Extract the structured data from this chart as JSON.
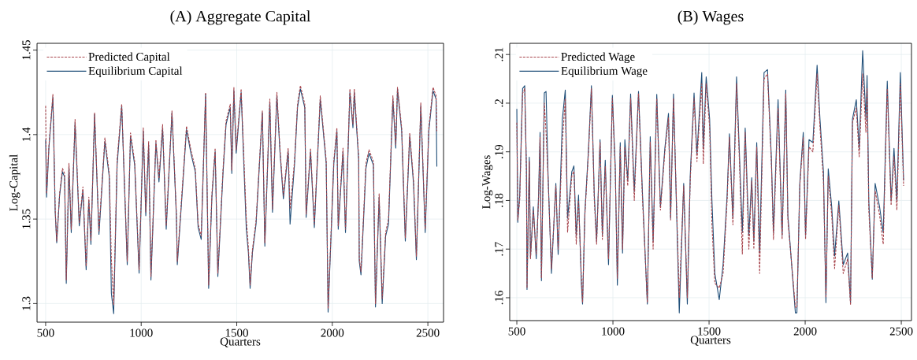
{
  "chart_data": [
    {
      "type": "line",
      "title": "(A) Aggregate Capital",
      "xlabel": "Quarters",
      "ylabel": "Log-Capital",
      "x": [
        500,
        505,
        517,
        538,
        550,
        558,
        573,
        588,
        599,
        608,
        622,
        634,
        654,
        676,
        695,
        712,
        726,
        737,
        756,
        779,
        810,
        833,
        844,
        856,
        874,
        898,
        927,
        944,
        966,
        989,
        1011,
        1024,
        1039,
        1051,
        1077,
        1093,
        1112,
        1131,
        1161,
        1184,
        1189,
        1237,
        1260,
        1283,
        1298,
        1314,
        1337,
        1353,
        1370,
        1387,
        1401,
        1428,
        1444,
        1466,
        1474,
        1485,
        1497,
        1523,
        1550,
        1561,
        1570,
        1582,
        1601,
        1634,
        1647,
        1673,
        1687,
        1710,
        1726,
        1744,
        1769,
        1779,
        1802,
        1818,
        1833,
        1856,
        1863,
        1886,
        1906,
        1937,
        1968,
        1978,
        2008,
        2024,
        2031,
        2056,
        2069,
        2092,
        2108,
        2115,
        2138,
        2141,
        2150,
        2176,
        2192,
        2215,
        2226,
        2245,
        2261,
        2279,
        2294,
        2317,
        2332,
        2341,
        2363,
        2382,
        2405,
        2425,
        2440,
        2463,
        2486,
        2505,
        2527,
        2543,
        2547
      ],
      "series": [
        {
          "name": "Predicted Capital",
          "color": "#a8464e",
          "line_style": "dashed",
          "values": [
            1.417,
            1.365,
            1.393,
            1.424,
            1.356,
            1.337,
            1.365,
            1.38,
            1.377,
            1.314,
            1.383,
            1.344,
            1.409,
            1.348,
            1.369,
            1.322,
            1.363,
            1.337,
            1.413,
            1.343,
            1.398,
            1.377,
            1.326,
            1.299,
            1.385,
            1.418,
            1.325,
            1.401,
            1.384,
            1.32,
            1.404,
            1.354,
            1.396,
            1.316,
            1.397,
            1.374,
            1.406,
            1.346,
            1.414,
            1.354,
            1.325,
            1.405,
            1.391,
            1.38,
            1.347,
            1.34,
            1.425,
            1.311,
            1.365,
            1.392,
            1.318,
            1.379,
            1.408,
            1.418,
            1.379,
            1.428,
            1.391,
            1.427,
            1.35,
            1.333,
            1.311,
            1.332,
            1.349,
            1.414,
            1.336,
            1.421,
            1.356,
            1.425,
            1.392,
            1.364,
            1.392,
            1.356,
            1.384,
            1.418,
            1.429,
            1.418,
            1.353,
            1.392,
            1.347,
            1.423,
            1.385,
            1.297,
            1.385,
            1.404,
            1.346,
            1.392,
            1.344,
            1.427,
            1.406,
            1.427,
            1.387,
            1.327,
            1.319,
            1.383,
            1.391,
            1.384,
            1.3,
            1.365,
            1.303,
            1.342,
            1.35,
            1.423,
            1.394,
            1.428,
            1.404,
            1.339,
            1.401,
            1.373,
            1.328,
            1.419,
            1.344,
            1.404,
            1.428,
            1.423,
            1.402
          ]
        },
        {
          "name": "Equilibrium Capital",
          "color": "#1f4e78",
          "line_style": "solid",
          "values": [
            1.397,
            1.363,
            1.392,
            1.422,
            1.354,
            1.336,
            1.364,
            1.378,
            1.375,
            1.312,
            1.381,
            1.342,
            1.407,
            1.346,
            1.367,
            1.32,
            1.361,
            1.335,
            1.412,
            1.341,
            1.396,
            1.375,
            1.306,
            1.294,
            1.382,
            1.417,
            1.323,
            1.399,
            1.382,
            1.318,
            1.402,
            1.352,
            1.394,
            1.314,
            1.395,
            1.372,
            1.404,
            1.344,
            1.413,
            1.352,
            1.323,
            1.403,
            1.389,
            1.378,
            1.345,
            1.338,
            1.424,
            1.309,
            1.363,
            1.39,
            1.316,
            1.377,
            1.406,
            1.416,
            1.377,
            1.426,
            1.389,
            1.425,
            1.344,
            1.33,
            1.309,
            1.33,
            1.347,
            1.413,
            1.334,
            1.419,
            1.354,
            1.423,
            1.39,
            1.362,
            1.39,
            1.347,
            1.382,
            1.416,
            1.427,
            1.416,
            1.351,
            1.39,
            1.345,
            1.421,
            1.383,
            1.295,
            1.383,
            1.402,
            1.344,
            1.39,
            1.342,
            1.425,
            1.404,
            1.425,
            1.385,
            1.325,
            1.317,
            1.38,
            1.389,
            1.382,
            1.298,
            1.363,
            1.3,
            1.34,
            1.347,
            1.421,
            1.392,
            1.427,
            1.402,
            1.337,
            1.399,
            1.371,
            1.326,
            1.417,
            1.342,
            1.402,
            1.426,
            1.421,
            1.381
          ]
        }
      ],
      "xlim": [
        455,
        2582
      ],
      "ylim": [
        1.289,
        1.454
      ],
      "xticks": [
        500,
        1000,
        1500,
        2000,
        2500
      ],
      "yticks": [
        1.3,
        1.35,
        1.4,
        1.45
      ],
      "grid": true,
      "legend": "top left"
    },
    {
      "type": "line",
      "title": "(B) Wages",
      "xlabel": "Quarters",
      "ylabel": "Log-Wages",
      "x": [
        500,
        505,
        515,
        530,
        541,
        550,
        553,
        565,
        571,
        586,
        601,
        613,
        621,
        628,
        643,
        652,
        662,
        680,
        703,
        715,
        737,
        752,
        764,
        786,
        797,
        809,
        821,
        836,
        842,
        854,
        873,
        888,
        903,
        915,
        933,
        945,
        960,
        977,
        997,
        1012,
        1023,
        1038,
        1050,
        1062,
        1077,
        1092,
        1111,
        1133,
        1154,
        1179,
        1194,
        1209,
        1228,
        1247,
        1270,
        1289,
        1300,
        1315,
        1345,
        1368,
        1387,
        1402,
        1422,
        1437,
        1462,
        1470,
        1485,
        1503,
        1515,
        1530,
        1553,
        1573,
        1594,
        1606,
        1624,
        1643,
        1658,
        1673,
        1688,
        1707,
        1722,
        1733,
        1748,
        1763,
        1786,
        1804,
        1824,
        1835,
        1859,
        1880,
        1899,
        1910,
        1949,
        1957,
        1972,
        1990,
        2002,
        2020,
        2040,
        2062,
        2077,
        2095,
        2108,
        2120,
        2138,
        2153,
        2175,
        2198,
        2221,
        2236,
        2246,
        2266,
        2281,
        2299,
        2316,
        2322,
        2331,
        2349,
        2364,
        2387,
        2406,
        2427,
        2447,
        2462,
        2477,
        2495,
        2512
      ],
      "series": [
        {
          "name": "Predicted Wage",
          "color": "#a8464e",
          "line_style": "dashed",
          "values": [
            0.196,
            0.176,
            0.18,
            0.202,
            0.203,
            0.186,
            0.162,
            0.188,
            0.168,
            0.178,
            0.169,
            0.18,
            0.193,
            0.164,
            0.2,
            0.194,
            0.185,
            0.166,
            0.183,
            0.17,
            0.192,
            0.201,
            0.1735,
            0.185,
            0.186,
            0.171,
            0.18,
            0.164,
            0.159,
            0.177,
            0.19,
            0.203,
            0.18,
            0.171,
            0.192,
            0.172,
            0.187,
            0.168,
            0.201,
            0.186,
            0.164,
            0.191,
            0.17,
            0.191,
            0.183,
            0.201,
            0.18,
            0.202,
            0.18,
            0.159,
            0.192,
            0.17,
            0.201,
            0.178,
            0.19,
            0.197,
            0.176,
            0.201,
            0.16,
            0.183,
            0.16,
            0.184,
            0.201,
            0.188,
            0.204,
            0.1875,
            0.204,
            0.195,
            0.175,
            0.163,
            0.162,
            0.165,
            0.18,
            0.193,
            0.175,
            0.204,
            0.188,
            0.169,
            0.194,
            0.17,
            0.184,
            0.17,
            0.191,
            0.165,
            0.205,
            0.206,
            0.188,
            0.172,
            0.199,
            0.172,
            0.202,
            0.176,
            0.158,
            0.158,
            0.183,
            0.193,
            0.172,
            0.191,
            0.19,
            0.206,
            0.195,
            0.184,
            0.16,
            0.185,
            0.177,
            0.166,
            0.179,
            0.165,
            0.168,
            0.1585,
            0.196,
            0.199,
            0.189,
            0.206,
            0.194,
            0.203,
            0.178,
            0.164,
            0.182,
            0.177,
            0.171,
            0.203,
            0.179,
            0.189,
            0.178,
            0.204,
            0.183
          ]
        },
        {
          "name": "Equilibrium Wage",
          "color": "#1f4e78",
          "line_style": "solid",
          "values": [
            0.1988,
            0.1755,
            0.1811,
            0.203,
            0.2036,
            0.1865,
            0.1617,
            0.1889,
            0.1683,
            0.1787,
            0.168,
            0.1811,
            0.194,
            0.1635,
            0.2021,
            0.2024,
            0.1859,
            0.165,
            0.1835,
            0.1689,
            0.1967,
            0.2027,
            0.1763,
            0.1859,
            0.1871,
            0.1728,
            0.1811,
            0.1626,
            0.1587,
            0.1775,
            0.1907,
            0.2036,
            0.1811,
            0.1716,
            0.1925,
            0.1728,
            0.1883,
            0.1668,
            0.2016,
            0.1871,
            0.1626,
            0.1919,
            0.1692,
            0.1925,
            0.1841,
            0.2019,
            0.1818,
            0.2024,
            0.1811,
            0.1587,
            0.1931,
            0.1716,
            0.2018,
            0.1787,
            0.1907,
            0.1979,
            0.1763,
            0.2019,
            0.1569,
            0.1835,
            0.1587,
            0.185,
            0.2021,
            0.1895,
            0.2063,
            0.1907,
            0.2054,
            0.1967,
            0.1799,
            0.165,
            0.1596,
            0.1668,
            0.1811,
            0.1937,
            0.1763,
            0.2054,
            0.1895,
            0.1734,
            0.1949,
            0.1728,
            0.1847,
            0.1716,
            0.1919,
            0.1692,
            0.2063,
            0.2069,
            0.1889,
            0.1734,
            0.2007,
            0.1728,
            0.2027,
            0.1769,
            0.1569,
            0.1569,
            0.1835,
            0.194,
            0.1728,
            0.1925,
            0.1919,
            0.2078,
            0.1967,
            0.1859,
            0.159,
            0.1865,
            0.1787,
            0.1686,
            0.1799,
            0.1668,
            0.1692,
            0.159,
            0.1967,
            0.2007,
            0.1907,
            0.2108,
            0.1967,
            0.2057,
            0.1799,
            0.1638,
            0.1835,
            0.1787,
            0.1734,
            0.2045,
            0.1799,
            0.1907,
            0.1799,
            0.2063,
            0.1841
          ]
        }
      ],
      "xlim": [
        463,
        2553
      ],
      "ylim": [
        0.1553,
        0.2123
      ],
      "xticks": [
        500,
        1000,
        1500,
        2000,
        2500
      ],
      "yticks": [
        {
          "value": 0.16,
          "label": ".16"
        },
        {
          "value": 0.17,
          "label": ".17"
        },
        {
          "value": 0.18,
          "label": ".18"
        },
        {
          "value": 0.19,
          "label": ".19"
        },
        {
          "value": 0.2,
          "label": ".2"
        },
        {
          "value": 0.21,
          "label": ".21"
        }
      ],
      "grid": true,
      "legend": "top left"
    }
  ]
}
